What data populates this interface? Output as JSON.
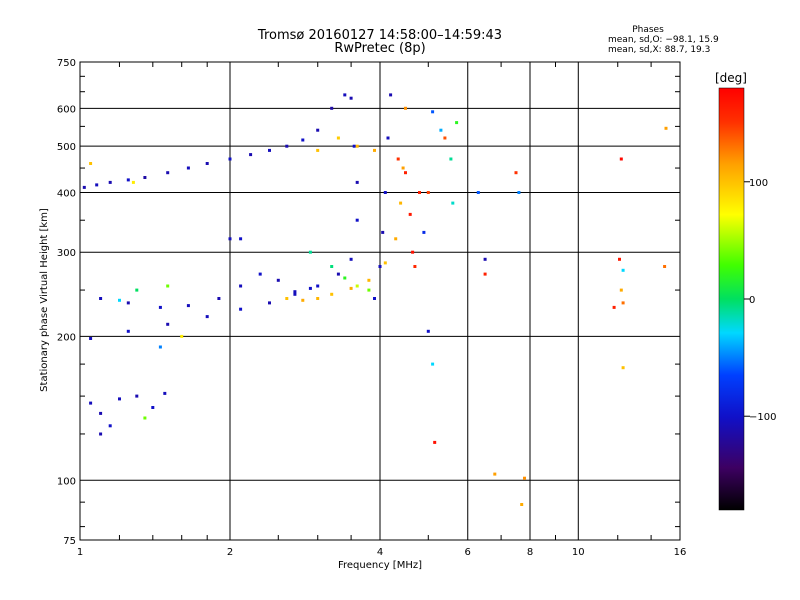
{
  "chart_data": {
    "type": "scatter",
    "title": "Tromsø 20160127 14:58:00–14:59:43",
    "subtitle": "RwPretec (8p)",
    "xlabel": "Frequency [MHz]",
    "ylabel": "Stationary phase Virtual Height [km]",
    "x_scale": "log",
    "y_scale": "log",
    "xlim": [
      1,
      16
    ],
    "ylim": [
      75,
      750
    ],
    "x_major_ticks": [
      1,
      2,
      4,
      6,
      8,
      10,
      16
    ],
    "x_tick_labels": [
      "1",
      "2",
      "4",
      "6",
      "8",
      "10",
      "16"
    ],
    "y_major_ticks": [
      75,
      100,
      200,
      300,
      400,
      500,
      600,
      750
    ],
    "y_tick_labels": [
      "75",
      "100",
      "200",
      "300",
      "400",
      "500",
      "600",
      "750"
    ],
    "grid": true,
    "legend": {
      "title": "Phases",
      "lines": [
        "mean, sd,O: −98.1, 15.9",
        "mean, sd,X:  88.7, 19.3"
      ],
      "placement": "top-right"
    },
    "colorbar": {
      "label": "[deg]",
      "range": [
        -180,
        180
      ],
      "ticks": [
        100,
        0,
        -100
      ],
      "tick_labels": [
        "100",
        "0",
        "−100"
      ],
      "colormap": "rainbow"
    },
    "series": [
      {
        "points": [
          [
            1.02,
            410,
            -110
          ],
          [
            1.08,
            415,
            -105
          ],
          [
            1.15,
            420,
            -110
          ],
          [
            1.25,
            425,
            -100
          ],
          [
            1.35,
            430,
            -115
          ],
          [
            1.5,
            440,
            -110
          ],
          [
            1.65,
            450,
            -105
          ],
          [
            1.8,
            460,
            -110
          ],
          [
            2.0,
            470,
            -100
          ],
          [
            2.2,
            480,
            -110
          ],
          [
            2.4,
            490,
            -105
          ],
          [
            2.6,
            500,
            -110
          ],
          [
            2.8,
            515,
            -100
          ],
          [
            3.0,
            540,
            -110
          ],
          [
            3.2,
            600,
            -115
          ],
          [
            3.4,
            640,
            -105
          ],
          [
            3.5,
            630,
            -110
          ],
          [
            3.55,
            500,
            -100
          ],
          [
            3.6,
            420,
            -110
          ],
          [
            3.6,
            350,
            -100
          ],
          [
            3.5,
            290,
            -105
          ],
          [
            3.3,
            270,
            -110
          ],
          [
            3.0,
            255,
            -100
          ],
          [
            2.7,
            245,
            -105
          ],
          [
            2.4,
            235,
            -110
          ],
          [
            2.1,
            228,
            -100
          ],
          [
            1.8,
            220,
            -105
          ],
          [
            1.5,
            212,
            -110
          ],
          [
            1.25,
            205,
            -100
          ],
          [
            1.05,
            198,
            -105
          ],
          [
            1.1,
            240,
            -105
          ],
          [
            1.25,
            235,
            -110
          ],
          [
            1.45,
            230,
            -100
          ],
          [
            1.65,
            232,
            -105
          ],
          [
            1.9,
            240,
            -110
          ],
          [
            2.1,
            255,
            -105
          ],
          [
            2.3,
            270,
            -100
          ],
          [
            2.5,
            262,
            -110
          ],
          [
            2.7,
            248,
            -105
          ],
          [
            2.9,
            252,
            -100
          ],
          [
            1.05,
            145,
            -105
          ],
          [
            1.1,
            138,
            -110
          ],
          [
            1.15,
            130,
            -100
          ],
          [
            1.2,
            148,
            -105
          ],
          [
            1.3,
            150,
            -110
          ],
          [
            1.4,
            142,
            -100
          ],
          [
            1.48,
            152,
            -105
          ],
          [
            1.1,
            125,
            -110
          ],
          [
            3.9,
            240,
            -100
          ],
          [
            4.0,
            280,
            -105
          ],
          [
            4.05,
            330,
            -110
          ],
          [
            4.1,
            400,
            -100
          ],
          [
            4.15,
            520,
            -105
          ],
          [
            4.2,
            640,
            -110
          ],
          [
            3.2,
            280,
            -5
          ],
          [
            3.4,
            265,
            20
          ],
          [
            3.6,
            255,
            60
          ],
          [
            2.9,
            300,
            -10
          ],
          [
            3.8,
            250,
            40
          ],
          [
            2.6,
            240,
            100
          ],
          [
            2.8,
            238,
            110
          ],
          [
            3.0,
            240,
            105
          ],
          [
            3.2,
            245,
            100
          ],
          [
            3.5,
            252,
            110
          ],
          [
            3.8,
            262,
            105
          ],
          [
            4.1,
            285,
            100
          ],
          [
            4.3,
            320,
            110
          ],
          [
            4.4,
            380,
            105
          ],
          [
            4.45,
            450,
            115
          ],
          [
            4.5,
            600,
            120
          ],
          [
            3.0,
            490,
            100
          ],
          [
            3.3,
            520,
            95
          ],
          [
            3.6,
            500,
            105
          ],
          [
            3.9,
            490,
            110
          ],
          [
            4.35,
            470,
            150
          ],
          [
            4.5,
            440,
            160
          ],
          [
            4.6,
            360,
            165
          ],
          [
            4.65,
            300,
            170
          ],
          [
            4.7,
            280,
            155
          ],
          [
            4.8,
            400,
            160
          ],
          [
            5.0,
            400,
            145
          ],
          [
            5.4,
            520,
            140
          ],
          [
            5.55,
            470,
            -10
          ],
          [
            5.6,
            380,
            -20
          ],
          [
            6.3,
            400,
            -60
          ],
          [
            6.5,
            290,
            -110
          ],
          [
            6.5,
            270,
            160
          ],
          [
            7.5,
            440,
            150
          ],
          [
            7.6,
            400,
            -50
          ],
          [
            5.0,
            205,
            -100
          ],
          [
            5.1,
            175,
            -30
          ],
          [
            5.15,
            120,
            170
          ],
          [
            6.8,
            103,
            115
          ],
          [
            7.7,
            89,
            110
          ],
          [
            7.8,
            101,
            120
          ],
          [
            12.2,
            470,
            175
          ],
          [
            12.1,
            290,
            165
          ],
          [
            12.3,
            275,
            -30
          ],
          [
            11.8,
            230,
            160
          ],
          [
            12.2,
            250,
            110
          ],
          [
            12.3,
            235,
            130
          ],
          [
            12.3,
            172,
            100
          ],
          [
            15.0,
            545,
            115
          ],
          [
            14.9,
            280,
            130
          ],
          [
            1.3,
            250,
            0
          ],
          [
            1.5,
            255,
            40
          ],
          [
            1.2,
            238,
            -30
          ],
          [
            1.05,
            460,
            100
          ],
          [
            1.28,
            420,
            80
          ],
          [
            1.35,
            135,
            40
          ],
          [
            1.45,
            190,
            -50
          ],
          [
            1.6,
            200,
            80
          ],
          [
            2.1,
            320,
            -100
          ],
          [
            2.0,
            320,
            -105
          ],
          [
            5.1,
            590,
            -60
          ],
          [
            5.3,
            540,
            -40
          ],
          [
            5.7,
            560,
            20
          ],
          [
            4.9,
            330,
            -80
          ]
        ]
      }
    ]
  }
}
